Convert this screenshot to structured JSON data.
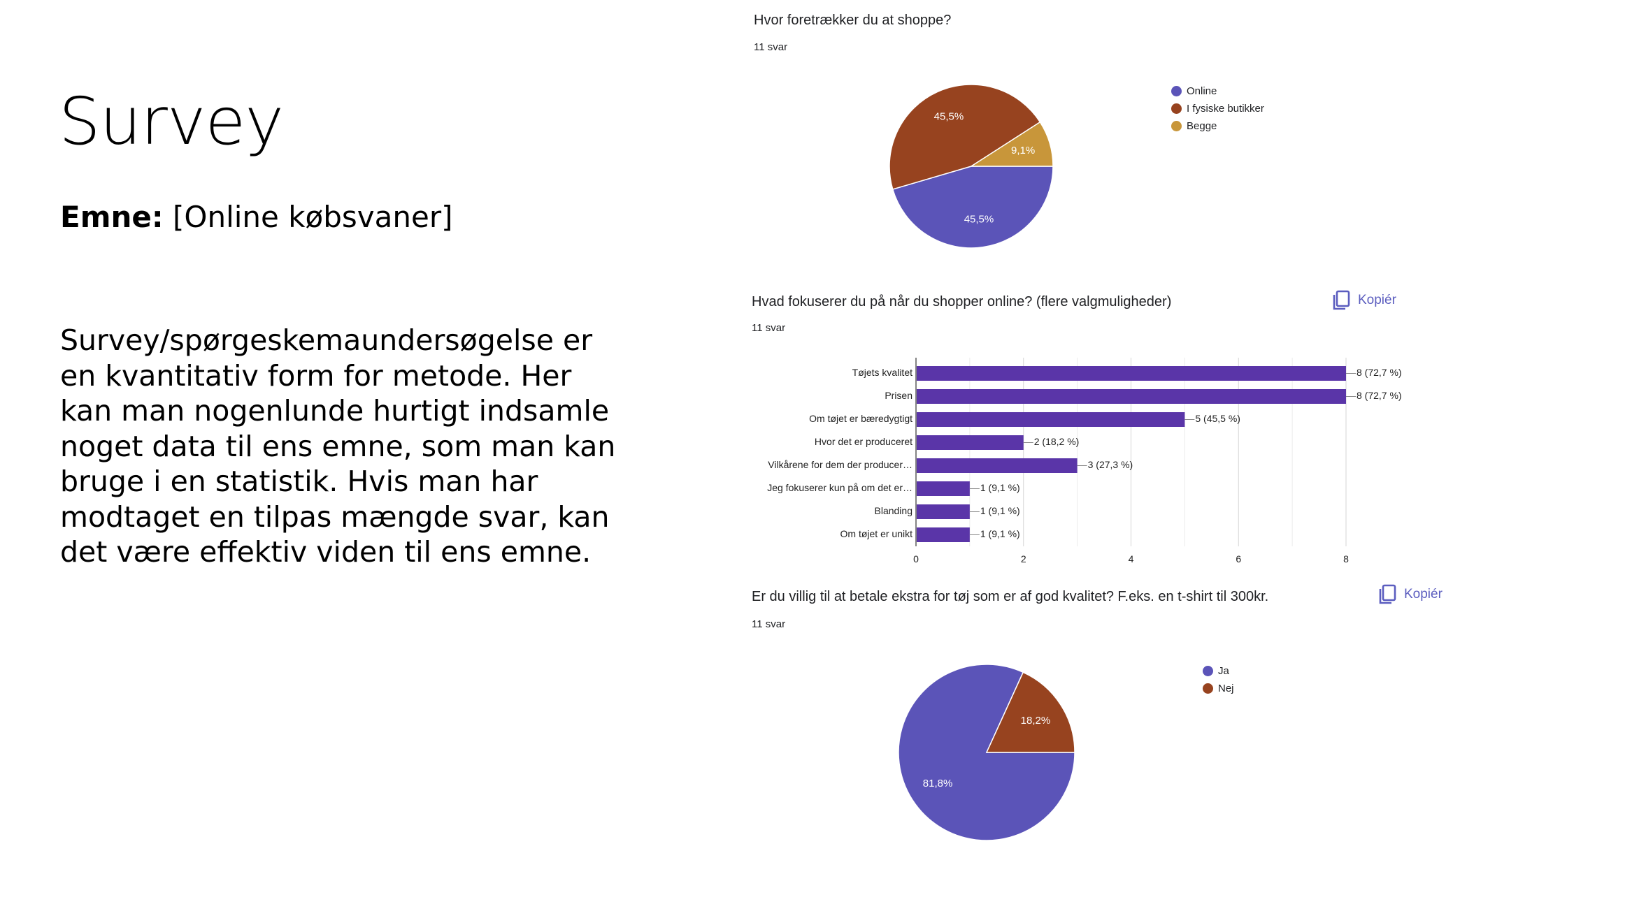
{
  "slide": {
    "title": "Survey",
    "topic_label": "Emne:",
    "topic_value": "[Online købsvaner]",
    "body": "Survey/spørgeskemaundersøgelse er en kvantitativ form for metode. Her kan man nogenlunde hurtigt indsamle noget data til ens emne, som man kan bruge i en statistik. Hvis man har modtaget en tilpas mængde svar, kan det være effektiv viden til ens emne."
  },
  "questions": [
    {
      "title": "Hvor foretrækker du at shoppe?",
      "count": "11 svar"
    },
    {
      "title": "Hvad fokuserer du på når du shopper online? (flere valgmuligheder)",
      "count": "11 svar",
      "copy_label": "Kopiér"
    },
    {
      "title": "Er du villig til at betale ekstra for tøj som er af god kvalitet? F.eks. en t-shirt til 300kr.",
      "count": "11 svar",
      "copy_label": "Kopiér"
    }
  ],
  "icons": {
    "copy": "copy-icon"
  },
  "chart_data": [
    {
      "type": "pie",
      "title": "Hvor foretrækker du at shoppe?",
      "slices": [
        {
          "label": "Online",
          "value": 45.5,
          "display": "45,5%",
          "color": "#5b54b8"
        },
        {
          "label": "I fysiske butikker",
          "value": 45.5,
          "display": "45,5%",
          "color": "#97431f"
        },
        {
          "label": "Begge",
          "value": 9.1,
          "display": "9,1%",
          "color": "#c8963a"
        }
      ],
      "legend_position": "right"
    },
    {
      "type": "bar",
      "orientation": "horizontal",
      "title": "Hvad fokuserer du på når du shopper online? (flere valgmuligheder)",
      "categories": [
        "Tøjets kvalitet",
        "Prisen",
        "Om tøjet er bæredygtigt",
        "Hvor det er produceret",
        "Vilkårene for dem der producer…",
        "Jeg fokuserer kun på om det er…",
        "Blanding",
        "Om tøjet er unikt"
      ],
      "values": [
        8,
        8,
        5,
        2,
        3,
        1,
        1,
        1
      ],
      "value_labels": [
        "8 (72,7 %)",
        "8 (72,7 %)",
        "5 (45,5 %)",
        "2 (18,2 %)",
        "3 (27,3 %)",
        "1 (9,1 %)",
        "1 (9,1 %)",
        "1 (9,1 %)"
      ],
      "xlim": [
        0,
        8
      ],
      "xticks": [
        0,
        2,
        4,
        6,
        8
      ],
      "color": "#5a35a8",
      "grid": true
    },
    {
      "type": "pie",
      "title": "Er du villig til at betale ekstra for tøj som er af god kvalitet? F.eks. en t-shirt til 300kr.",
      "slices": [
        {
          "label": "Ja",
          "value": 81.8,
          "display": "81,8%",
          "color": "#5b54b8"
        },
        {
          "label": "Nej",
          "value": 18.2,
          "display": "18,2%",
          "color": "#97431f"
        }
      ],
      "legend_position": "right"
    }
  ]
}
